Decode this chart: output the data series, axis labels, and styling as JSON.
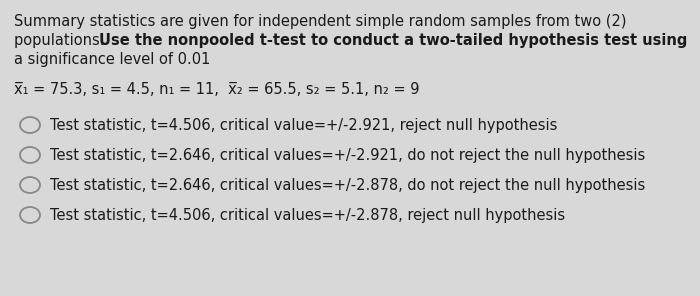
{
  "background_color": "#d8d8d8",
  "text_color": "#1a1a1a",
  "font_size_body": 10.5,
  "font_size_stats": 10.5,
  "font_size_options": 10.5,
  "line1": "Summary statistics are given for independent simple random samples from two (2)",
  "line2_normal": "populations. ",
  "line2_bold": "Use the nonpooled t-test to conduct a two-tailed hypothesis test using",
  "line3": "a significance level of 0.01",
  "stats": "x̅₁ = 75.3, s₁ = 4.5, n₁ = 11,  x̅₂ = 65.5, s₂ = 5.1, n₂ = 9",
  "options": [
    "Test statistic, t=4.506, critical value=+/-2.921, reject null hypothesis",
    "Test statistic, t=2.646, critical values=+/-2.921, do not reject the null hypothesis",
    "Test statistic, t=2.646, critical values=+/-2.878, do not reject the null hypothesis",
    "Test statistic, t=4.506, critical values=+/-2.878, reject null hypothesis"
  ],
  "circle_edge_color": "#888888",
  "circle_linewidth": 1.3
}
